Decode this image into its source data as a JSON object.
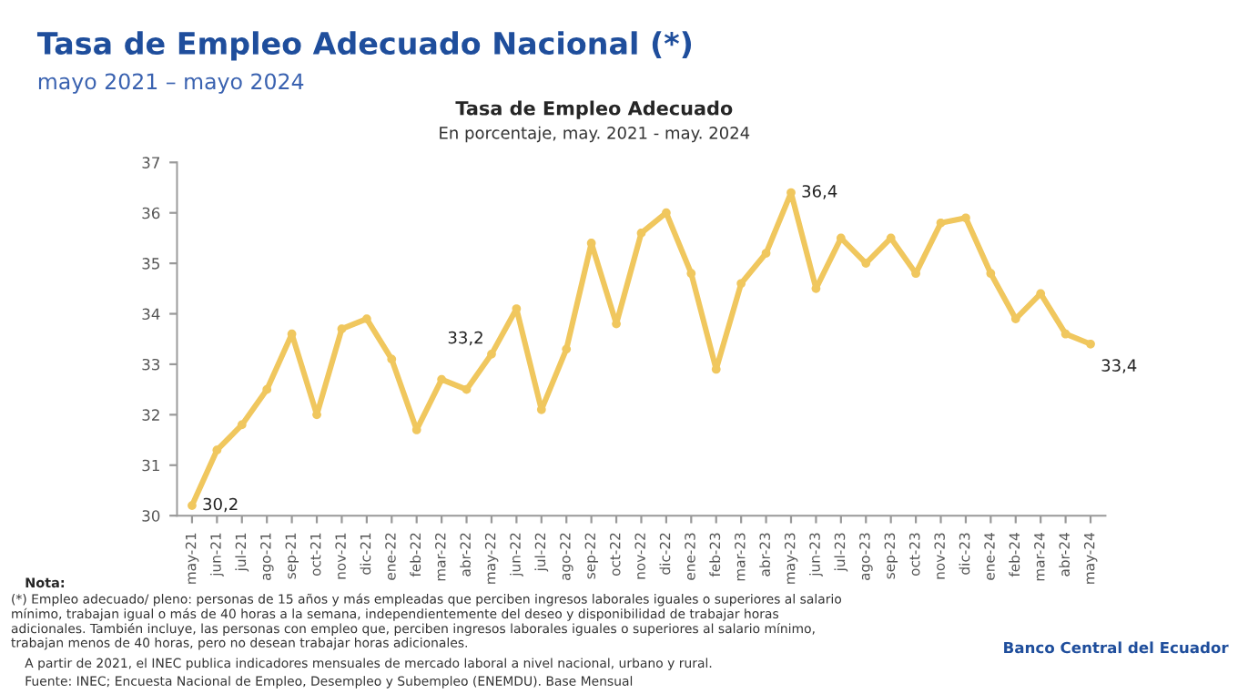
{
  "chart_data": {
    "type": "line",
    "title": "Tasa de Empleo Adecuado Nacional (*)",
    "subtitle": "mayo 2021 – mayo 2024",
    "categories": [
      "may-21",
      "jun-21",
      "jul-21",
      "ago-21",
      "sep-21",
      "oct-21",
      "nov-21",
      "dic-21",
      "ene-22",
      "feb-22",
      "mar-22",
      "abr-22",
      "may-22",
      "jun-22",
      "jul-22",
      "ago-22",
      "sep-22",
      "oct-22",
      "nov-22",
      "dic-22",
      "ene-23",
      "feb-23",
      "mar-23",
      "abr-23",
      "may-23",
      "jun-23",
      "jul-23",
      "ago-23",
      "sep-23",
      "oct-23",
      "nov-23",
      "dic-23",
      "ene-24",
      "feb-24",
      "mar-24",
      "abr-24",
      "may-24"
    ],
    "series": [
      {
        "color": "#f0c75e",
        "values": [
          30.2,
          31.3,
          31.8,
          32.5,
          33.6,
          32.0,
          33.7,
          33.9,
          33.1,
          31.7,
          32.7,
          32.5,
          33.2,
          34.1,
          32.1,
          33.3,
          35.4,
          33.8,
          35.6,
          36.0,
          34.8,
          32.9,
          34.6,
          35.2,
          36.4,
          34.5,
          35.5,
          35.0,
          35.5,
          34.8,
          35.8,
          35.9,
          34.8,
          33.9,
          34.4,
          33.6,
          33.4
        ],
        "value_labels": [
          "30,2",
          null,
          null,
          null,
          null,
          null,
          null,
          null,
          null,
          null,
          null,
          null,
          "33,2",
          null,
          null,
          null,
          null,
          null,
          null,
          null,
          null,
          null,
          null,
          null,
          "36,4",
          null,
          null,
          null,
          null,
          null,
          null,
          null,
          null,
          null,
          null,
          null,
          "33,4"
        ]
      }
    ],
    "ylim": [
      30,
      37
    ],
    "yticks": [
      30,
      31,
      32,
      33,
      34,
      35,
      36,
      37
    ],
    "grid": false,
    "legend": false,
    "marker": "circle",
    "line_style": "solid",
    "annotations": [
      "Tasa de Empleo Adecuado",
      "En porcentaje, may. 2021 - may. 2024",
      "Nota:",
      "(*) Empleo adecuado/ pleno: personas de 15 años y más empleadas que perciben ingresos laborales iguales o superiores al salario mínimo, trabajan igual o más de 40 horas a la semana, independientemente del deseo y disponibilidad de trabajar horas adicionales. También incluye, las personas con empleo que, perciben ingresos laborales iguales o superiores al salario mínimo, trabajan menos de 40 horas, pero no desean trabajar horas adicionales.",
      "A partir de 2021, el INEC publica indicadores mensuales de mercado laboral a nivel nacional, urbano y rural.",
      "Fuente: INEC; Encuesta Nacional de Empleo, Desempleo y Subempleo (ENEMDU). Base Mensual",
      "Banco Central del Ecuador"
    ]
  }
}
